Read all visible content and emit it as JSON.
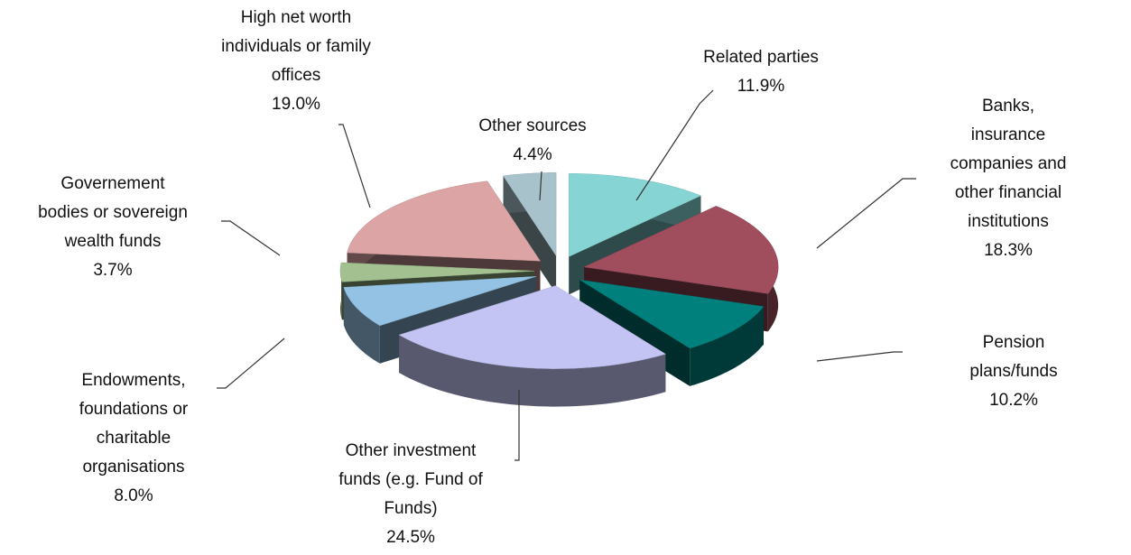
{
  "chart_data": {
    "type": "pie3d",
    "categories": [
      "Related parties",
      "Banks, insurance\ncompanies and\nother financial\ninstitutions",
      "Pension plans/funds",
      "Other investment\nfunds (e.g. Fund of\nFunds)",
      "Endowments,\nfoundations or\ncharitable\norganisations",
      "Governement\nbodies or sovereign\nwealth funds",
      "High net worth\nindividuals or family\noffices",
      "Other sources"
    ],
    "values": [
      11.9,
      18.3,
      10.2,
      24.5,
      8.0,
      3.7,
      19.0,
      4.4
    ],
    "value_labels": [
      "11.9%",
      "18.3%",
      "10.2%",
      "24.5%",
      "8.0%",
      "3.7%",
      "19.0%",
      "4.4%"
    ],
    "colors": [
      "#86d4d4",
      "#a04e5e",
      "#00807c",
      "#c4c4f4",
      "#94c2e4",
      "#a2c090",
      "#dca4a4",
      "#a8c2cc"
    ]
  }
}
